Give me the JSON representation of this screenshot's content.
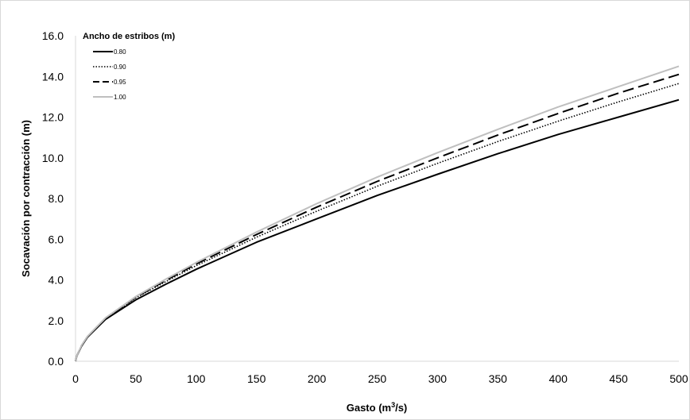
{
  "chart_data": {
    "type": "line",
    "title": "",
    "xlabel": "Gasto (m",
    "xlabel_sup": "3",
    "xlabel_suffix": "/s)",
    "ylabel": "Socavación por contracción (m)",
    "xlim": [
      0,
      500
    ],
    "ylim": [
      0,
      16
    ],
    "x_ticks": [
      0,
      50,
      100,
      150,
      200,
      250,
      300,
      350,
      400,
      450,
      500
    ],
    "y_ticks": [
      "0.0",
      "2.0",
      "4.0",
      "6.0",
      "8.0",
      "10.0",
      "12.0",
      "14.0",
      "16.0"
    ],
    "grid": false,
    "legend": {
      "title": "Ancho de estribos  (m)",
      "placement": "top-left"
    },
    "x": [
      0,
      1,
      5,
      10,
      25,
      50,
      75,
      100,
      150,
      200,
      250,
      300,
      350,
      400,
      450,
      500
    ],
    "series": [
      {
        "name": "0.80",
        "style": "solid",
        "color": "#000000",
        "values": [
          0,
          0.25,
          0.74,
          1.19,
          2.06,
          3.02,
          3.79,
          4.52,
          5.85,
          7.0,
          8.15,
          9.19,
          10.2,
          11.15,
          12.0,
          12.85
        ]
      },
      {
        "name": "0.90",
        "style": "dotted",
        "color": "#000000",
        "values": [
          0,
          0.25,
          0.76,
          1.21,
          2.1,
          3.12,
          3.92,
          4.7,
          6.1,
          7.38,
          8.6,
          9.73,
          10.8,
          11.8,
          12.75,
          13.65
        ]
      },
      {
        "name": "0.95",
        "style": "dashed",
        "color": "#000000",
        "values": [
          0,
          0.26,
          0.77,
          1.22,
          2.12,
          3.15,
          3.98,
          4.78,
          6.23,
          7.58,
          8.84,
          10.0,
          11.12,
          12.18,
          13.18,
          14.1
        ]
      },
      {
        "name": "1.00",
        "style": "solid",
        "color": "#bfbfbf",
        "values": [
          0,
          0.26,
          0.78,
          1.23,
          2.14,
          3.18,
          4.04,
          4.85,
          6.35,
          7.75,
          9.05,
          10.25,
          11.4,
          12.5,
          13.5,
          14.5
        ]
      }
    ]
  }
}
